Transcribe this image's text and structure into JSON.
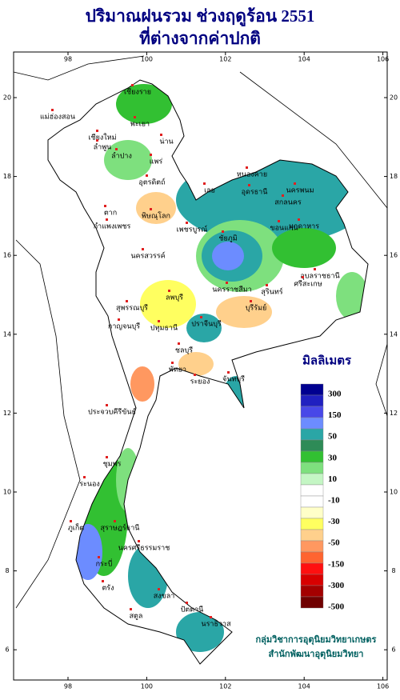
{
  "title": [
    "ปริมาณฝนรวม ช่วงฤดูร้อน 2551",
    "ที่ต่างจากค่าปกติ"
  ],
  "axes": {
    "longitude_ticks": [
      98,
      100,
      102,
      104,
      106
    ],
    "latitude_ticks": [
      20,
      18,
      16,
      14,
      12,
      10,
      8,
      6
    ]
  },
  "legend": {
    "title": "มิลลิเมตร",
    "colors": [
      "#000090",
      "#2020c0",
      "#4848e8",
      "#6c8cff",
      "#2aa6a6",
      "#2e8b57",
      "#32c032",
      "#7ee07e",
      "#c4f6c4",
      "#ffffff",
      "#ffffff",
      "#ffffc8",
      "#ffff60",
      "#ffd08c",
      "#ff9860",
      "#ff6430",
      "#ff1010",
      "#d80000",
      "#a40000",
      "#700000"
    ],
    "labels": [
      300,
      150,
      50,
      30,
      10,
      -10,
      -30,
      -50,
      -150,
      -300,
      -500
    ]
  },
  "places": [
    "เชียงราย",
    "แม่ฮ่องสอน",
    "พะเยา",
    "เชียงใหม่",
    "ลำพูน",
    "ลำปาง",
    "น่าน",
    "แพร่",
    "อุตรดิตถ์",
    "หนองคาย",
    "อุดรธานี",
    "นครพนม",
    "สกลนคร",
    "มุกดาหาร",
    "เลย",
    "ขอนแก่น",
    "ชัยภูมิ",
    "อุบลราชธานี",
    "นครราชสีมา",
    "สุรินทร์",
    "ศรีสะเกษ",
    "บุรีรัมย์",
    "ตาก",
    "กำแพงเพชร",
    "พิษณุโลก",
    "เพชรบูรณ์",
    "นครสวรรค์",
    "ลพบุรี",
    "สุพรรณบุรี",
    "กาญจนบุรี",
    "ปทุมธานี",
    "ปราจีนบุรี",
    "ชลบุรี",
    "ระยอง",
    "จันทบุรี",
    "พัทยา",
    "ประจวบคีรีขันธ์",
    "ชุมพร",
    "ระนอง",
    "สุราษฎร์ธานี",
    "นครศรีธรรมราช",
    "ภูเก็ต",
    "กระบี่",
    "ตรัง",
    "สงขลา",
    "ปัตตานี",
    "นราธิวาส",
    "สตูล"
  ],
  "credit": [
    "กลุ่มวิชาการอุตุนิยมวิทยาเกษตร",
    "สำนักพัฒนาอุตุนิยมวิทยา"
  ]
}
